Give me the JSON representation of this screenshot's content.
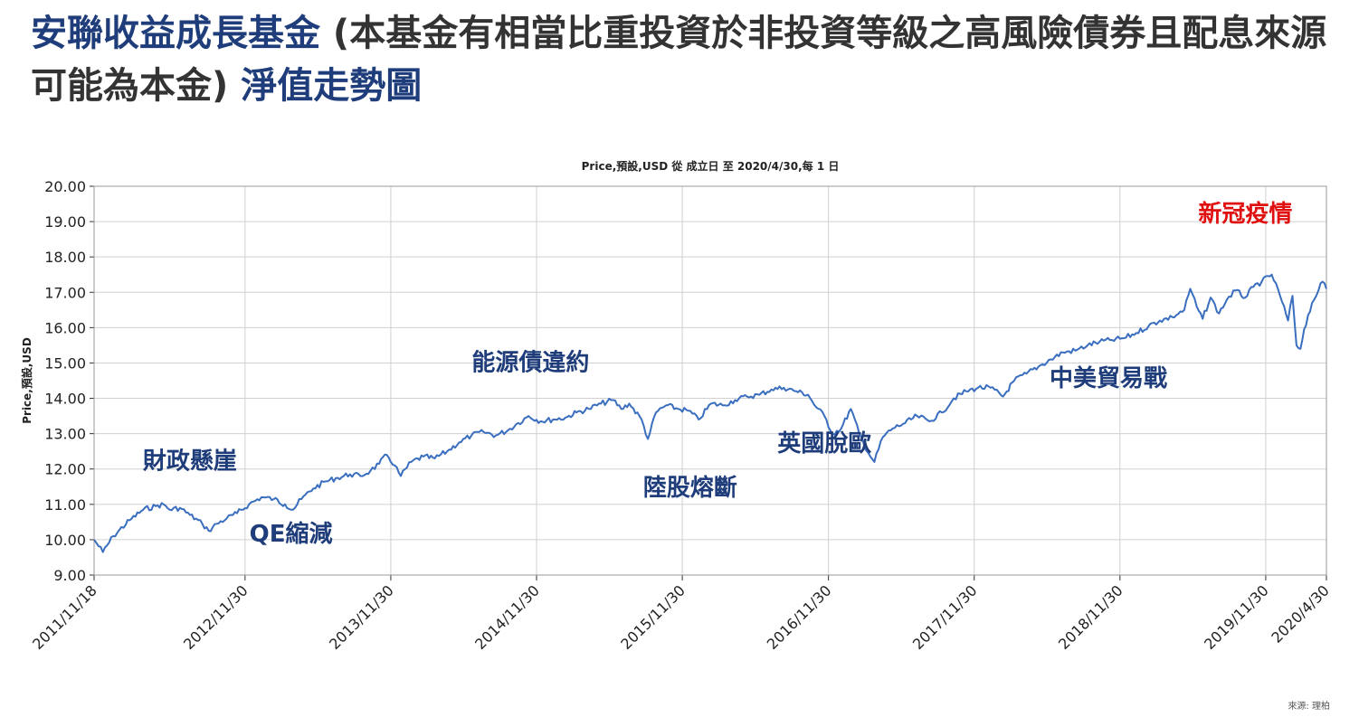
{
  "heading": {
    "part1": "安聯收益成長基金",
    "part2": " (本基金有相當比重投資於非投資等級之高風險債券且配息來源可能為本金) ",
    "part3": "淨值走勢圖"
  },
  "source_note": "來源: 理柏",
  "colors": {
    "title_blue": "#1f3d7a",
    "title_dark": "#333333",
    "line": "#3a6ebf",
    "annotation_blue": "#1f3d7a",
    "annotation_red": "#e01010"
  },
  "chart_data": {
    "type": "line",
    "title": "Price,預設,USD 從 成立日 至 2020/4/30,每 1 日",
    "ylabel": "Price,預設,USD",
    "xlabel": "",
    "ylim": [
      9,
      20
    ],
    "yticks": [
      "9.00",
      "10.00",
      "11.00",
      "12.00",
      "13.00",
      "14.00",
      "15.00",
      "16.00",
      "17.00",
      "18.00",
      "19.00",
      "20.00"
    ],
    "xrange": [
      "2011-11-18",
      "2020-04-30"
    ],
    "xticks": [
      {
        "date": "2011-11-18",
        "label": "2011/11/18"
      },
      {
        "date": "2012-11-30",
        "label": "2012/11/30"
      },
      {
        "date": "2013-11-30",
        "label": "2013/11/30"
      },
      {
        "date": "2014-11-30",
        "label": "2014/11/30"
      },
      {
        "date": "2015-11-30",
        "label": "2015/11/30"
      },
      {
        "date": "2016-11-30",
        "label": "2016/11/30"
      },
      {
        "date": "2017-11-30",
        "label": "2017/11/30"
      },
      {
        "date": "2018-11-30",
        "label": "2018/11/30"
      },
      {
        "date": "2019-11-30",
        "label": "2019/11/30"
      },
      {
        "date": "2020-04-30",
        "label": "2020/4/30"
      }
    ],
    "grid": true,
    "series": [
      {
        "points": [
          [
            "2011-11-18",
            10.0
          ],
          [
            "2011-12-10",
            9.65
          ],
          [
            "2012-01-05",
            10.1
          ],
          [
            "2012-02-15",
            10.55
          ],
          [
            "2012-03-20",
            10.85
          ],
          [
            "2012-04-20",
            10.95
          ],
          [
            "2012-05-10",
            11.0
          ],
          [
            "2012-05-25",
            10.85
          ],
          [
            "2012-06-20",
            10.9
          ],
          [
            "2012-07-15",
            10.7
          ],
          [
            "2012-08-15",
            10.45
          ],
          [
            "2012-08-31",
            10.25
          ],
          [
            "2012-09-20",
            10.45
          ],
          [
            "2012-10-15",
            10.6
          ],
          [
            "2012-11-10",
            10.75
          ],
          [
            "2012-12-10",
            11.0
          ],
          [
            "2013-01-10",
            11.2
          ],
          [
            "2013-02-10",
            11.15
          ],
          [
            "2013-03-10",
            11.0
          ],
          [
            "2013-03-30",
            10.85
          ],
          [
            "2013-04-20",
            11.15
          ],
          [
            "2013-05-20",
            11.45
          ],
          [
            "2013-06-20",
            11.65
          ],
          [
            "2013-07-20",
            11.75
          ],
          [
            "2013-08-20",
            11.85
          ],
          [
            "2013-09-15",
            11.8
          ],
          [
            "2013-10-10",
            11.95
          ],
          [
            "2013-11-01",
            12.15
          ],
          [
            "2013-11-20",
            12.4
          ],
          [
            "2013-12-10",
            12.1
          ],
          [
            "2013-12-25",
            11.8
          ],
          [
            "2014-01-20",
            12.2
          ],
          [
            "2014-02-20",
            12.35
          ],
          [
            "2014-03-20",
            12.3
          ],
          [
            "2014-04-20",
            12.5
          ],
          [
            "2014-05-20",
            12.75
          ],
          [
            "2014-06-20",
            12.95
          ],
          [
            "2014-07-20",
            13.05
          ],
          [
            "2014-08-20",
            12.95
          ],
          [
            "2014-09-20",
            13.1
          ],
          [
            "2014-10-15",
            13.3
          ],
          [
            "2014-11-10",
            13.5
          ],
          [
            "2014-12-10",
            13.35
          ],
          [
            "2015-01-10",
            13.4
          ],
          [
            "2015-02-10",
            13.45
          ],
          [
            "2015-03-10",
            13.6
          ],
          [
            "2015-04-10",
            13.7
          ],
          [
            "2015-05-10",
            13.85
          ],
          [
            "2015-06-10",
            13.95
          ],
          [
            "2015-06-30",
            13.7
          ],
          [
            "2015-07-20",
            13.85
          ],
          [
            "2015-08-20",
            13.4
          ],
          [
            "2015-09-05",
            12.85
          ],
          [
            "2015-09-25",
            13.6
          ],
          [
            "2015-10-20",
            13.8
          ],
          [
            "2015-11-20",
            13.7
          ],
          [
            "2015-12-15",
            13.65
          ],
          [
            "2016-01-10",
            13.4
          ],
          [
            "2016-02-10",
            13.85
          ],
          [
            "2016-03-10",
            13.8
          ],
          [
            "2016-04-10",
            13.95
          ],
          [
            "2016-05-10",
            14.05
          ],
          [
            "2016-06-10",
            14.1
          ],
          [
            "2016-07-10",
            14.25
          ],
          [
            "2016-08-10",
            14.3
          ],
          [
            "2016-09-10",
            14.2
          ],
          [
            "2016-10-10",
            14.1
          ],
          [
            "2016-10-30",
            13.75
          ],
          [
            "2016-11-20",
            13.5
          ],
          [
            "2016-12-10",
            13.0
          ],
          [
            "2017-01-01",
            13.15
          ],
          [
            "2017-01-25",
            13.7
          ],
          [
            "2017-02-15",
            13.0
          ],
          [
            "2017-03-10",
            12.45
          ],
          [
            "2017-03-25",
            12.2
          ],
          [
            "2017-04-15",
            12.9
          ],
          [
            "2017-05-10",
            13.15
          ],
          [
            "2017-06-10",
            13.3
          ],
          [
            "2017-07-10",
            13.5
          ],
          [
            "2017-08-10",
            13.35
          ],
          [
            "2017-09-10",
            13.6
          ],
          [
            "2017-10-10",
            14.0
          ],
          [
            "2017-11-10",
            14.2
          ],
          [
            "2017-12-10",
            14.3
          ],
          [
            "2018-01-10",
            14.3
          ],
          [
            "2018-02-10",
            14.05
          ],
          [
            "2018-03-10",
            14.5
          ],
          [
            "2018-04-10",
            14.7
          ],
          [
            "2018-05-10",
            14.9
          ],
          [
            "2018-06-10",
            15.1
          ],
          [
            "2018-07-10",
            15.3
          ],
          [
            "2018-08-10",
            15.35
          ],
          [
            "2018-09-10",
            15.5
          ],
          [
            "2018-10-10",
            15.6
          ],
          [
            "2018-11-10",
            15.65
          ],
          [
            "2018-12-10",
            15.7
          ],
          [
            "2019-01-10",
            15.85
          ],
          [
            "2019-02-10",
            16.05
          ],
          [
            "2019-03-10",
            16.2
          ],
          [
            "2019-04-10",
            16.3
          ],
          [
            "2019-05-10",
            16.5
          ],
          [
            "2019-05-25",
            17.1
          ],
          [
            "2019-06-10",
            16.6
          ],
          [
            "2019-06-25",
            16.25
          ],
          [
            "2019-07-15",
            16.85
          ],
          [
            "2019-08-05",
            16.4
          ],
          [
            "2019-08-25",
            16.8
          ],
          [
            "2019-09-15",
            17.05
          ],
          [
            "2019-10-10",
            16.85
          ],
          [
            "2019-10-30",
            17.15
          ],
          [
            "2019-11-20",
            17.3
          ],
          [
            "2019-12-15",
            17.5
          ],
          [
            "2020-01-05",
            16.9
          ],
          [
            "2020-01-25",
            16.2
          ],
          [
            "2020-02-05",
            16.9
          ],
          [
            "2020-02-15",
            15.5
          ],
          [
            "2020-02-25",
            15.4
          ],
          [
            "2020-03-05",
            15.95
          ],
          [
            "2020-03-25",
            16.7
          ],
          [
            "2020-04-10",
            17.05
          ],
          [
            "2020-04-20",
            17.3
          ],
          [
            "2020-04-30",
            17.1
          ]
        ]
      }
    ],
    "annotations": [
      {
        "text": "財政懸崖",
        "date": "2012-07-15",
        "value": 12.0,
        "color": "#1f3d7a"
      },
      {
        "text": "QE縮減",
        "date": "2013-03-25",
        "value": 9.95,
        "color": "#1f3d7a"
      },
      {
        "text": "能源債違約",
        "date": "2014-11-15",
        "value": 14.8,
        "color": "#1f3d7a"
      },
      {
        "text": "陸股熔斷",
        "date": "2015-12-20",
        "value": 11.25,
        "color": "#1f3d7a"
      },
      {
        "text": "英國脫歐",
        "date": "2016-11-20",
        "value": 12.5,
        "color": "#1f3d7a"
      },
      {
        "text": "中美貿易戰",
        "date": "2018-11-01",
        "value": 14.35,
        "color": "#1f3d7a"
      },
      {
        "text": "新冠疫情",
        "date": "2019-10-10",
        "value": 19.0,
        "color": "#e01010"
      }
    ]
  }
}
